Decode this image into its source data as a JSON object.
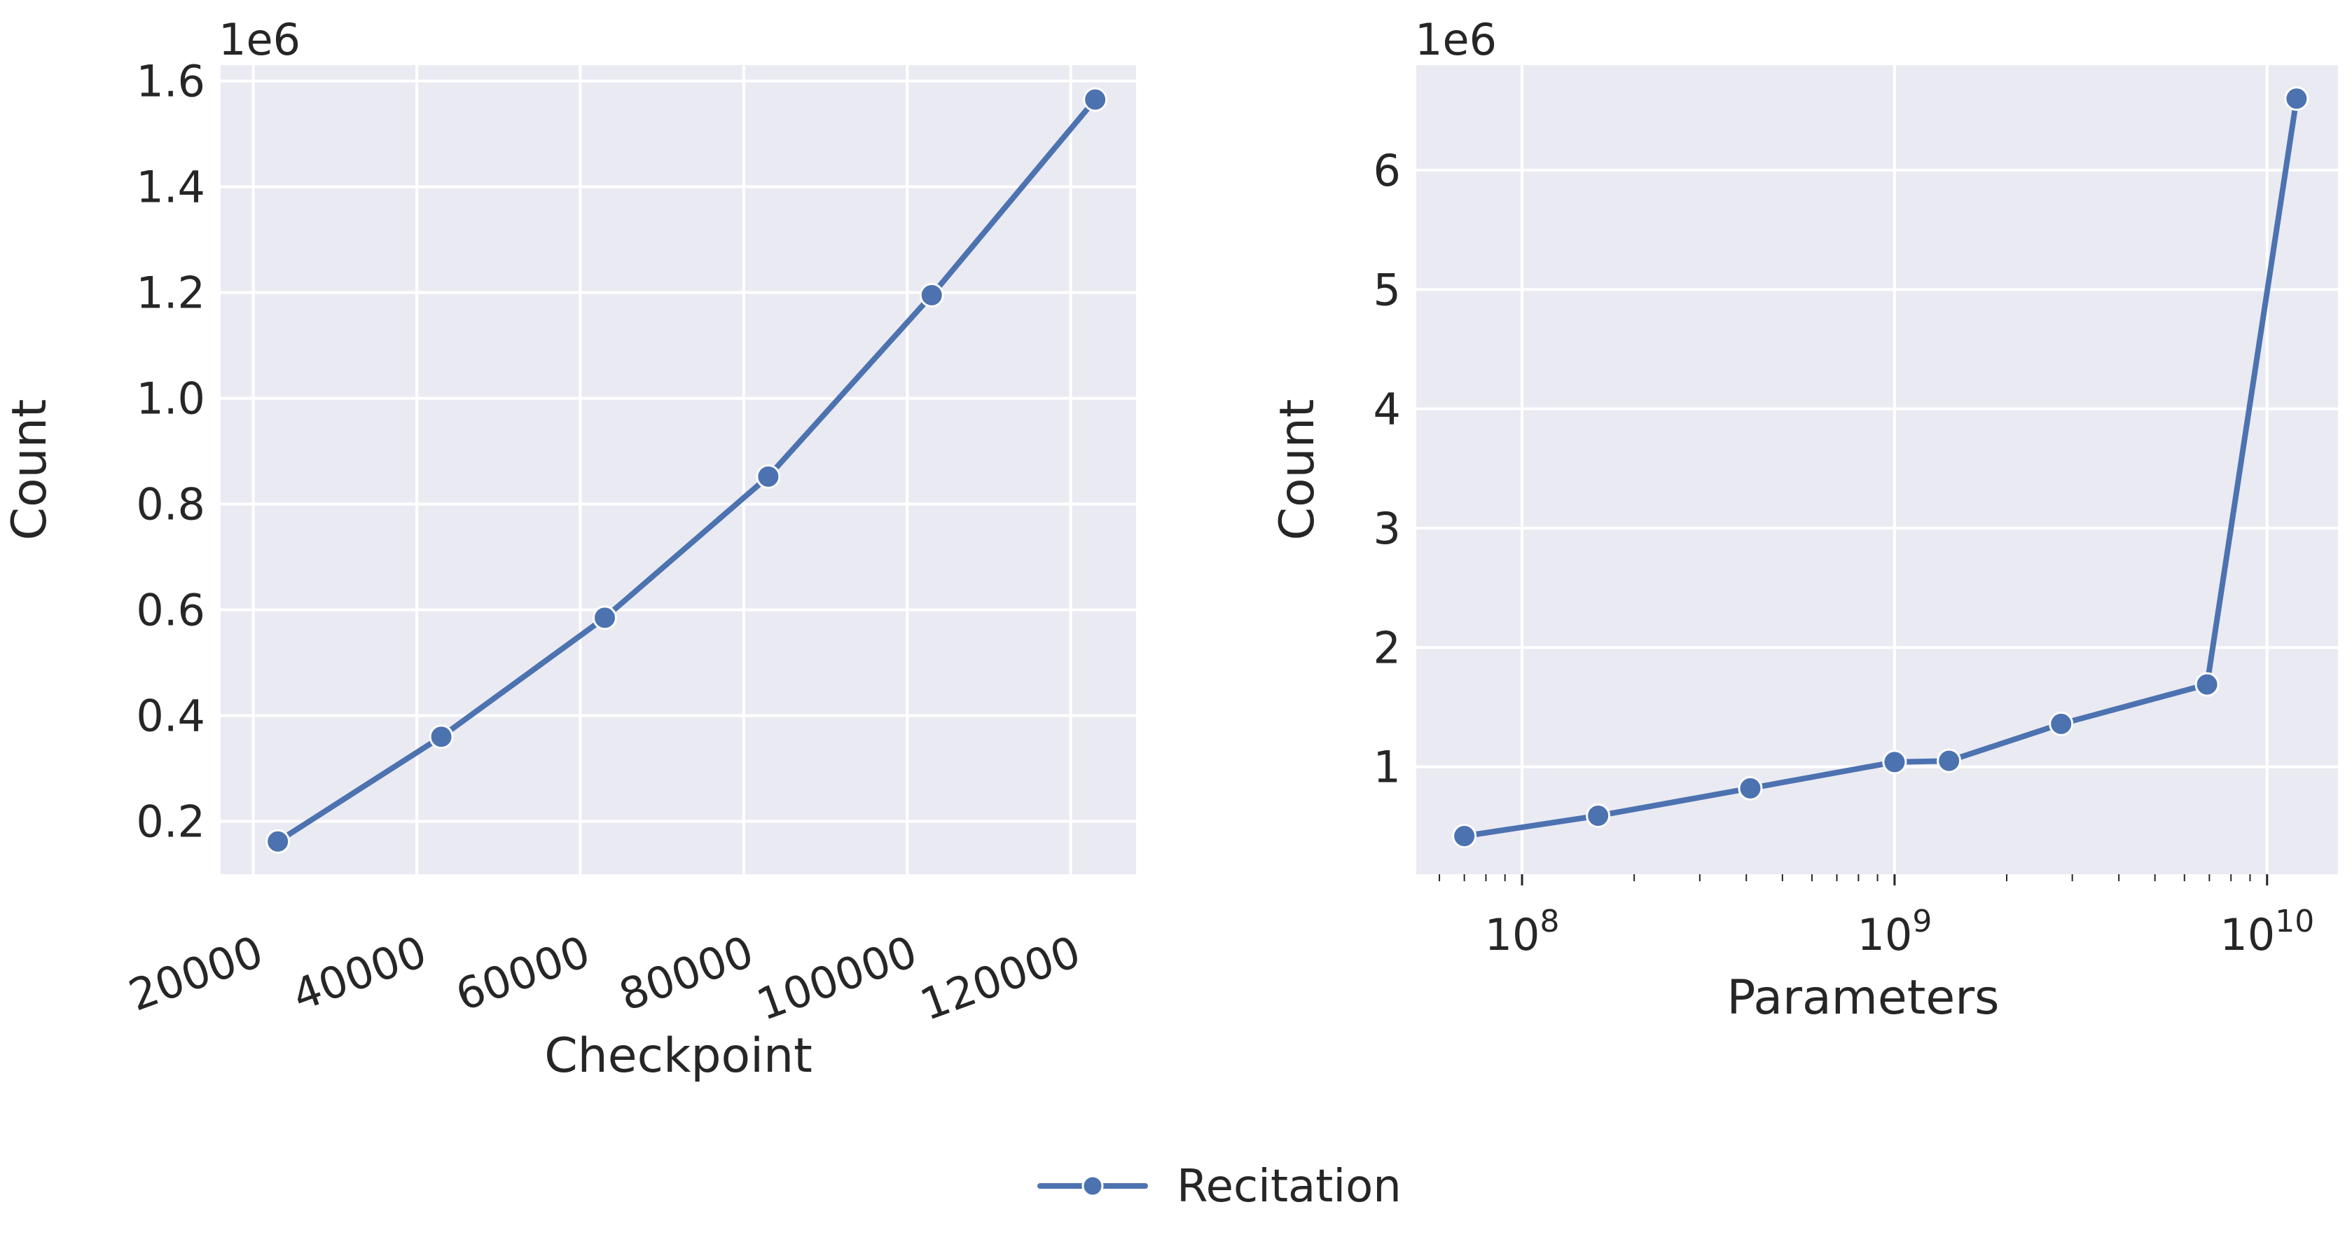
{
  "chart_data": [
    {
      "type": "line",
      "xlabel": "Checkpoint",
      "ylabel": "Count",
      "y_offset_label": "1e6",
      "x_scale": "linear",
      "xlim": [
        16000,
        128000
      ],
      "ylim": [
        0.1,
        1.63
      ],
      "x_ticks": [
        20000,
        40000,
        60000,
        80000,
        100000,
        120000
      ],
      "x_tick_labels": [
        "20000",
        "40000",
        "60000",
        "80000",
        "100000",
        "120000"
      ],
      "y_ticks": [
        0.2,
        0.4,
        0.6,
        0.8,
        1.0,
        1.2,
        1.4,
        1.6
      ],
      "y_tick_labels": [
        "0.2",
        "0.4",
        "0.6",
        "0.8",
        "1.0",
        "1.2",
        "1.4",
        "1.6"
      ],
      "grid": true,
      "series": [
        {
          "name": "Recitation",
          "x": [
            23000,
            43000,
            63000,
            83000,
            103000,
            123000
          ],
          "y": [
            0.162,
            0.36,
            0.585,
            0.852,
            1.195,
            1.565
          ]
        }
      ]
    },
    {
      "type": "line",
      "xlabel": "Parameters",
      "ylabel": "Count",
      "y_offset_label": "1e6",
      "x_scale": "log",
      "xlim": [
        52000000,
        15500000000
      ],
      "ylim": [
        0.1,
        6.88
      ],
      "x_ticks": [
        100000000,
        1000000000,
        10000000000
      ],
      "x_tick_labels": [
        {
          "base": "10",
          "exp": "8"
        },
        {
          "base": "10",
          "exp": "9"
        },
        {
          "base": "10",
          "exp": "10"
        }
      ],
      "y_ticks": [
        1,
        2,
        3,
        4,
        5,
        6
      ],
      "y_tick_labels": [
        "1",
        "2",
        "3",
        "4",
        "5",
        "6"
      ],
      "grid": true,
      "series": [
        {
          "name": "Recitation",
          "x": [
            70000000,
            160000000,
            410000000,
            1000000000,
            1400000000,
            2800000000,
            6900000000,
            12000000000
          ],
          "y": [
            0.42,
            0.59,
            0.82,
            1.04,
            1.05,
            1.36,
            1.69,
            6.6
          ]
        }
      ]
    }
  ],
  "legend": {
    "placement": "bottom-center",
    "label": "Recitation",
    "color": "#4c72b0"
  },
  "colors": {
    "axes_background": "#eaeaf2",
    "grid": "#ffffff",
    "line": "#4c72b0",
    "marker_edge": "#ffffff",
    "text": "#262626"
  }
}
